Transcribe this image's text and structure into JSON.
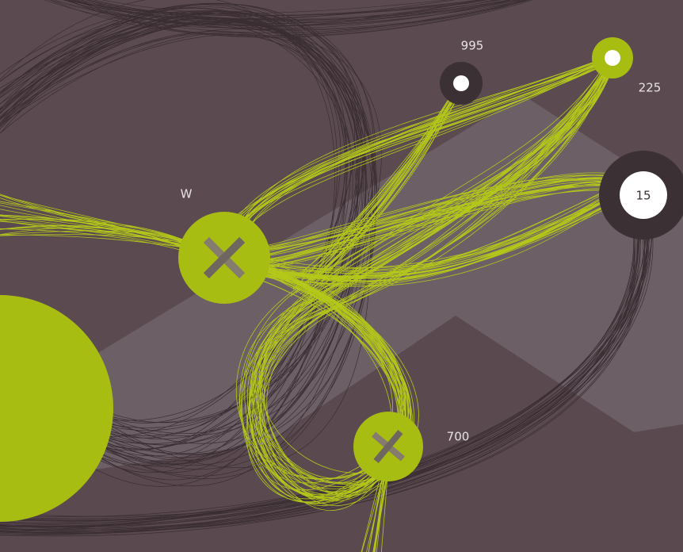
{
  "nodes": [
    {
      "label": "995"
    },
    {
      "label": "225"
    },
    {
      "label": "W"
    },
    {
      "label": "15"
    },
    {
      "label": "700"
    }
  ]
}
